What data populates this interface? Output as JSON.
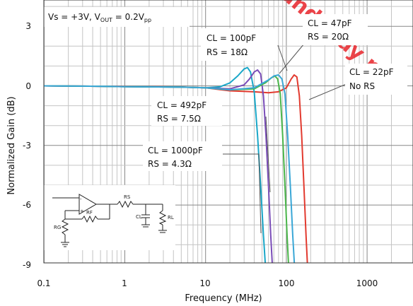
{
  "chart_data": {
    "type": "line",
    "xlabel": "Frequency (MHz)",
    "ylabel": "Normalized Gain (dB)",
    "xscale": "log",
    "xlim": [
      0.1,
      2000
    ],
    "ylim": [
      -9,
      4
    ],
    "x_ticks": [
      "0.1",
      "1",
      "10",
      "100",
      "1000"
    ],
    "y_ticks": [
      "3",
      "0",
      "-3",
      "-6",
      "-9"
    ],
    "grid": true,
    "condition_prefix": "Vs = +3V, V",
    "condition_sub1": "OUT",
    "condition_mid": " = 0.2V",
    "condition_sub2": "pp",
    "annotations": [
      {
        "line1": "CL = 100pF",
        "line2": "RS = 18Ω"
      },
      {
        "line1": "CL = 47pF",
        "line2": "RS = 20Ω"
      },
      {
        "line1": "CL = 22pF",
        "line2": "No RS"
      },
      {
        "line1": "CL = 492pF",
        "line2": "RS = 7.5Ω"
      },
      {
        "line1": "CL = 1000pF",
        "line2": "RS = 4.3Ω"
      }
    ],
    "series": [
      {
        "color": "#e23a2f",
        "x": [
          0.1,
          0.5,
          1,
          5,
          10,
          20,
          40,
          60,
          80,
          100,
          115,
          125,
          135,
          145,
          155,
          165,
          175,
          185
        ],
        "y": [
          0,
          -0.02,
          -0.03,
          -0.06,
          -0.1,
          -0.25,
          -0.3,
          -0.35,
          -0.3,
          -0.1,
          0.35,
          0.55,
          0.45,
          -0.5,
          -2.5,
          -5.0,
          -7.5,
          -9.5
        ]
      },
      {
        "color": "#1aa7c8",
        "x": [
          0.1,
          0.5,
          1,
          5,
          10,
          15,
          20,
          25,
          30,
          33,
          36,
          40,
          44,
          48,
          52,
          56
        ],
        "y": [
          0,
          -0.02,
          -0.04,
          -0.06,
          -0.1,
          -0.05,
          0.15,
          0.5,
          0.85,
          0.92,
          0.7,
          -0.3,
          -2.5,
          -5.0,
          -7.5,
          -9.5
        ]
      },
      {
        "color": "#7a4db8",
        "x": [
          0.1,
          0.5,
          1,
          5,
          10,
          20,
          30,
          35,
          40,
          44,
          48,
          52,
          56,
          60,
          64,
          68
        ],
        "y": [
          0,
          -0.02,
          -0.04,
          -0.06,
          -0.1,
          -0.15,
          0.05,
          0.35,
          0.7,
          0.8,
          0.6,
          -0.5,
          -2.5,
          -5.0,
          -7.5,
          -9.5
        ]
      },
      {
        "color": "#4ab64a",
        "x": [
          0.1,
          0.5,
          1,
          5,
          10,
          20,
          40,
          55,
          65,
          72,
          78,
          84,
          90,
          96,
          102,
          108
        ],
        "y": [
          0,
          -0.02,
          -0.04,
          -0.06,
          -0.1,
          -0.2,
          -0.15,
          0.15,
          0.4,
          0.5,
          0.35,
          -0.4,
          -2.5,
          -5.0,
          -7.5,
          -9.5
        ]
      },
      {
        "color": "#3aa7d6",
        "x": [
          0.1,
          0.5,
          1,
          5,
          10,
          20,
          40,
          60,
          70,
          80,
          88,
          96,
          104,
          112,
          120,
          128
        ],
        "y": [
          0,
          -0.02,
          -0.04,
          -0.06,
          -0.1,
          -0.2,
          -0.1,
          0.3,
          0.5,
          0.55,
          0.35,
          -0.4,
          -2.5,
          -5.0,
          -7.5,
          -9.5
        ]
      }
    ],
    "watermark": "and may no"
  }
}
